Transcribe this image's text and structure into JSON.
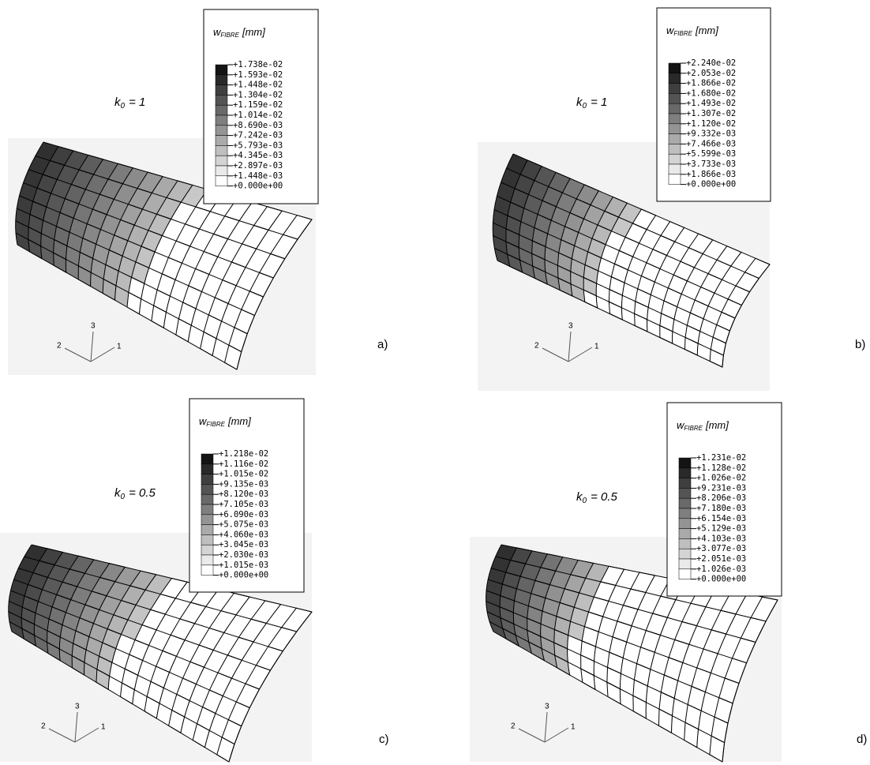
{
  "panels": [
    {
      "label": "a)",
      "k0": {
        "symbol": "k",
        "sub": "0",
        "rest": "= 1"
      },
      "legend": {
        "symbol": "w",
        "sub": "FIBRE",
        "unit": "[mm]",
        "values": [
          "+1.738e-02",
          "+1.593e-02",
          "+1.448e-02",
          "+1.304e-02",
          "+1.159e-02",
          "+1.014e-02",
          "+8.690e-03",
          "+7.242e-03",
          "+5.793e-03",
          "+4.345e-03",
          "+2.897e-03",
          "+1.448e-03",
          "+0.000e+00"
        ]
      },
      "triad": [
        "1",
        "2",
        "3"
      ]
    },
    {
      "label": "b)",
      "k0": {
        "symbol": "k",
        "sub": "0",
        "rest": "= 1"
      },
      "legend": {
        "symbol": "w",
        "sub": "FIBRE",
        "unit": "[mm]",
        "values": [
          "+2.240e-02",
          "+2.053e-02",
          "+1.866e-02",
          "+1.680e-02",
          "+1.493e-02",
          "+1.307e-02",
          "+1.120e-02",
          "+9.332e-03",
          "+7.466e-03",
          "+5.599e-03",
          "+3.733e-03",
          "+1.866e-03",
          "+0.000e+00"
        ]
      },
      "triad": [
        "1",
        "2",
        "3"
      ]
    },
    {
      "label": "c)",
      "k0": {
        "symbol": "k",
        "sub": "0",
        "rest": "= 0.5"
      },
      "legend": {
        "symbol": "w",
        "sub": "FIBRE",
        "unit": "[mm]",
        "values": [
          "+1.218e-02",
          "+1.116e-02",
          "+1.015e-02",
          "+9.135e-03",
          "+8.120e-03",
          "+7.105e-03",
          "+6.090e-03",
          "+5.075e-03",
          "+4.060e-03",
          "+3.045e-03",
          "+2.030e-03",
          "+1.015e-03",
          "+0.000e+00"
        ]
      },
      "triad": [
        "1",
        "2",
        "3"
      ]
    },
    {
      "label": "d)",
      "k0": {
        "symbol": "k",
        "sub": "0",
        "rest": "= 0.5"
      },
      "legend": {
        "symbol": "w",
        "sub": "FIBRE",
        "unit": "[mm]",
        "values": [
          "+1.231e-02",
          "+1.128e-02",
          "+1.026e-02",
          "+9.231e-03",
          "+8.206e-03",
          "+7.180e-03",
          "+6.154e-03",
          "+5.129e-03",
          "+4.103e-03",
          "+3.077e-03",
          "+2.051e-03",
          "+1.026e-03",
          "+0.000e+00"
        ]
      },
      "triad": [
        "1",
        "2",
        "3"
      ]
    }
  ]
}
